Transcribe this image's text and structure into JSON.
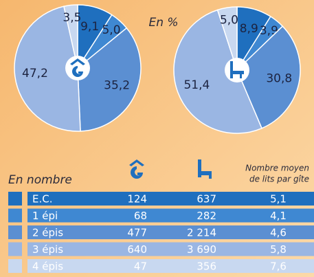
{
  "caption": "En %",
  "chart_data": [
    {
      "type": "pie",
      "values": [
        9.1,
        5.0,
        35.2,
        47.2,
        3.5
      ],
      "value_labels": [
        "9,1",
        "5,0",
        "35,2",
        "47,2",
        "3,5"
      ],
      "colors": [
        "#1f6fbe",
        "#3f88d2",
        "#5b8fd2",
        "#9ab6e3",
        "#c8d8f0"
      ]
    },
    {
      "type": "pie",
      "values": [
        8.9,
        3.9,
        30.8,
        51.4,
        5.0
      ],
      "value_labels": [
        "8,9",
        "3,9",
        "30,8",
        "51,4",
        "5,0"
      ],
      "colors": [
        "#1f6fbe",
        "#3f88d2",
        "#5b8fd2",
        "#9ab6e3",
        "#c8d8f0"
      ]
    }
  ],
  "table": {
    "label": "En nombre",
    "note": [
      "Nombre moyen",
      "de lits par gîte"
    ],
    "rows": [
      [
        "E.C.",
        "124",
        "637",
        "5,1"
      ],
      [
        "1 épi",
        "68",
        "282",
        "4,1"
      ],
      [
        "2 épis",
        "477",
        "2 214",
        "4,6"
      ],
      [
        "3 épis",
        "640",
        "3 690",
        "5,8"
      ],
      [
        "4 épis",
        "47",
        "356",
        "7,6"
      ]
    ]
  }
}
